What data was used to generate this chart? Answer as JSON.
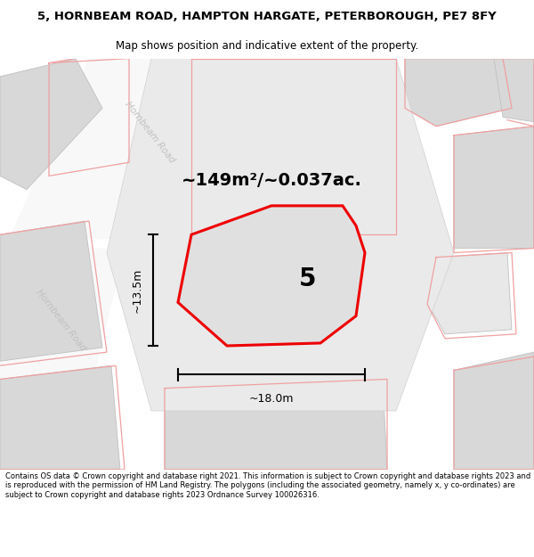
{
  "title": "5, HORNBEAM ROAD, HAMPTON HARGATE, PETERBOROUGH, PE7 8FY",
  "subtitle": "Map shows position and indicative extent of the property.",
  "area_label": "~149m²/~0.037ac.",
  "plot_number": "5",
  "width_label": "~18.0m",
  "height_label": "~13.5m",
  "footer_text": "Contains OS data © Crown copyright and database right 2021. This information is subject to Crown copyright and database rights 2023 and is reproduced with the permission of HM Land Registry. The polygons (including the associated geometry, namely x, y co-ordinates) are subject to Crown copyright and database rights 2023 Ordnance Survey 100026316.",
  "bg_color": "#ffffff",
  "map_bg": "#f2f2f2",
  "road_white": "#ffffff",
  "building_fill": "#d8d8d8",
  "building_edge": "#c0c0c0",
  "outline_color": "#ee0000",
  "light_red": "#f0a0a0",
  "prop_fill": "#e0e0e0",
  "road_label_color": "#c0c0c0",
  "title_fontsize": 9.5,
  "subtitle_fontsize": 8.5,
  "footer_fontsize": 6.0
}
